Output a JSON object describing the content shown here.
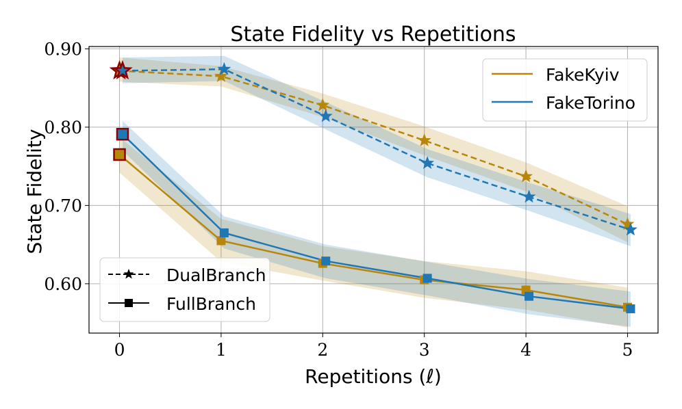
{
  "chart_data": {
    "type": "line",
    "title": "State Fidelity vs Repetitions",
    "xlabel": "Repetitions (ℓ)",
    "ylabel": "State Fidelity",
    "xlim": [
      -0.3,
      5.3
    ],
    "ylim": [
      0.537,
      0.903
    ],
    "x_ticks": [
      0,
      1,
      2,
      3,
      4,
      5
    ],
    "x_tick_labels": [
      "0",
      "1",
      "2",
      "3",
      "4",
      "5"
    ],
    "y_ticks": [
      0.6,
      0.7,
      0.8,
      0.9
    ],
    "y_tick_labels": [
      "0.60",
      "0.70",
      "0.80",
      "0.90"
    ],
    "grid": true,
    "legend_devices": {
      "placement": "top-right",
      "entries": [
        {
          "label": "FakeKyiv",
          "color": "#b8860b"
        },
        {
          "label": "FakeTorino",
          "color": "#1f77b4"
        }
      ]
    },
    "legend_methods": {
      "placement": "bottom-left",
      "entries": [
        {
          "label": "DualBranch",
          "line": "dashed",
          "marker": "star"
        },
        {
          "label": "FullBranch",
          "line": "solid",
          "marker": "square"
        }
      ]
    },
    "series": [
      {
        "name": "FakeKyiv",
        "method": "DualBranch",
        "color": "#b8860b",
        "line": "dashed",
        "marker": "star",
        "x": [
          0,
          1,
          2,
          3,
          4,
          5
        ],
        "y": [
          0.872,
          0.865,
          0.828,
          0.783,
          0.737,
          0.676
        ],
        "band_lower": [
          0.858,
          0.852,
          0.813,
          0.764,
          0.718,
          0.653
        ],
        "band_upper": [
          0.889,
          0.878,
          0.843,
          0.801,
          0.755,
          0.699
        ]
      },
      {
        "name": "FakeTorino",
        "method": "DualBranch",
        "color": "#1f77b4",
        "line": "dashed",
        "marker": "star",
        "x": [
          0.03,
          1.03,
          2.03,
          3.03,
          4.03,
          5.03
        ],
        "y": [
          0.872,
          0.874,
          0.814,
          0.754,
          0.711,
          0.669
        ],
        "band_lower": [
          0.856,
          0.859,
          0.797,
          0.736,
          0.693,
          0.648
        ],
        "band_upper": [
          0.889,
          0.891,
          0.832,
          0.772,
          0.729,
          0.689
        ]
      },
      {
        "name": "FakeKyiv",
        "method": "FullBranch",
        "color": "#b8860b",
        "line": "solid",
        "marker": "square",
        "x": [
          0,
          1,
          2,
          3,
          4,
          5
        ],
        "y": [
          0.765,
          0.655,
          0.626,
          0.605,
          0.592,
          0.57
        ],
        "band_lower": [
          0.742,
          0.628,
          0.604,
          0.582,
          0.567,
          0.544
        ],
        "band_upper": [
          0.787,
          0.683,
          0.648,
          0.629,
          0.616,
          0.595
        ]
      },
      {
        "name": "FakeTorino",
        "method": "FullBranch",
        "color": "#1f77b4",
        "line": "solid",
        "marker": "square",
        "x": [
          0.03,
          1.03,
          2.03,
          3.03,
          4.03,
          5.03
        ],
        "y": [
          0.791,
          0.665,
          0.629,
          0.607,
          0.584,
          0.568
        ],
        "band_lower": [
          0.77,
          0.645,
          0.607,
          0.585,
          0.561,
          0.545
        ],
        "band_upper": [
          0.808,
          0.686,
          0.65,
          0.628,
          0.606,
          0.59
        ]
      }
    ],
    "highlight": {
      "marker_edge_color": "#8b0000",
      "index": 0
    }
  }
}
